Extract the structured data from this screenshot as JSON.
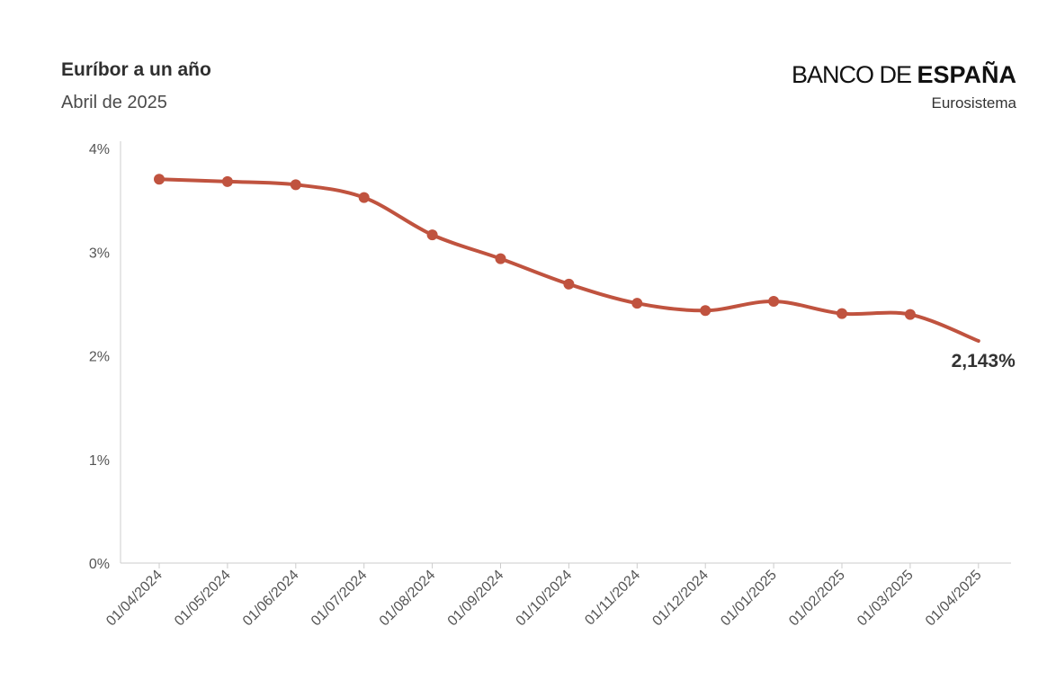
{
  "header": {
    "title": "Euríbor a un año",
    "subtitle": "Abril de 2025"
  },
  "logo": {
    "part1": "BANCO DE ",
    "part2": "ESPAÑA",
    "sub": "Eurosistema"
  },
  "colors": {
    "line": "#c0533f",
    "axis": "#cccccc",
    "gridline": "#eeeeee"
  },
  "chart_data": {
    "type": "line",
    "title": "Euríbor a un año",
    "subtitle": "Abril de 2025",
    "x": [
      "01/04/2024",
      "01/05/2024",
      "01/06/2024",
      "01/07/2024",
      "01/08/2024",
      "01/09/2024",
      "01/10/2024",
      "01/11/2024",
      "01/12/2024",
      "01/01/2025",
      "01/02/2025",
      "01/03/2025",
      "01/04/2025"
    ],
    "y_ticks": [
      "0%",
      "1%",
      "2%",
      "3%",
      "4%"
    ],
    "ylim": [
      0,
      4
    ],
    "series": [
      {
        "values": [
          3.703,
          3.68,
          3.65,
          3.526,
          3.166,
          2.936,
          2.691,
          2.506,
          2.436,
          2.525,
          2.407,
          2.398,
          2.143
        ],
        "markers": [
          true,
          true,
          true,
          true,
          true,
          true,
          true,
          true,
          true,
          true,
          true,
          true,
          false
        ]
      }
    ],
    "end_label": "2,143%",
    "grid": false,
    "legend": "none"
  }
}
